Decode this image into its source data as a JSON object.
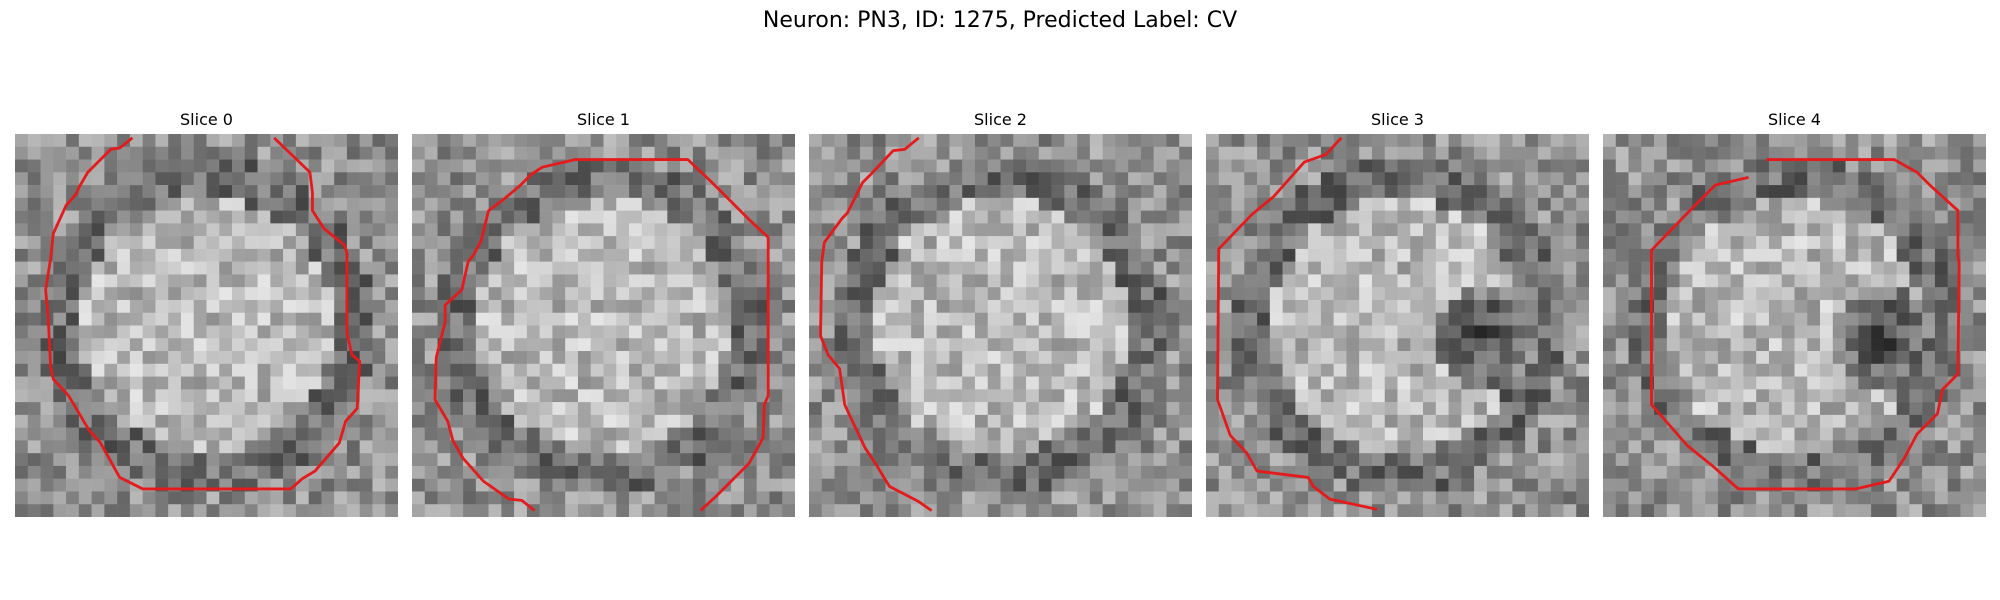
{
  "title": "Neuron: PN3, ID: 1275, Predicted Label: CV",
  "panels": [
    {
      "label": "Slice 0"
    },
    {
      "label": "Slice 1"
    },
    {
      "label": "Slice 2"
    },
    {
      "label": "Slice 3"
    },
    {
      "label": "Slice 4"
    }
  ],
  "colors": {
    "contour": "#e41a1c",
    "background": "#ffffff"
  }
}
